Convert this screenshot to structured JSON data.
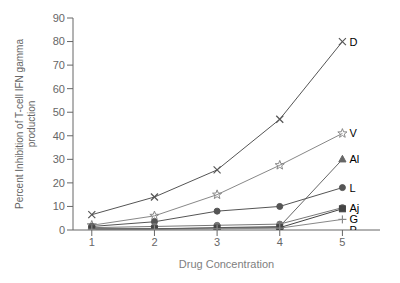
{
  "chart_data": {
    "type": "line",
    "x": [
      1,
      2,
      3,
      4,
      5
    ],
    "series": [
      {
        "name": "D",
        "color": "#555555",
        "marker": "x",
        "values": [
          6.5,
          14.0,
          25.5,
          47.0,
          80.0
        ]
      },
      {
        "name": "V",
        "color": "#888888",
        "marker": "star",
        "values": [
          2.0,
          6.0,
          15.0,
          27.5,
          41.0
        ]
      },
      {
        "name": "Al",
        "color": "#666666",
        "marker": "triangle",
        "values": [
          0.3,
          0.5,
          1.0,
          1.5,
          30.0
        ]
      },
      {
        "name": "L",
        "color": "#555555",
        "marker": "circle",
        "values": [
          1.5,
          3.5,
          8.0,
          10.0,
          18.0
        ]
      },
      {
        "name": "Aj",
        "color": "#777777",
        "marker": "circle",
        "values": [
          1.0,
          1.5,
          2.0,
          2.5,
          9.5
        ]
      },
      {
        "name": "G",
        "color": "#444444",
        "marker": "square",
        "values": [
          0.5,
          0.5,
          0.8,
          1.0,
          9.0
        ]
      },
      {
        "name": "P",
        "color": "#888888",
        "marker": "plus",
        "values": [
          0.3,
          0.3,
          0.5,
          0.8,
          4.5
        ]
      }
    ],
    "xlabel": "Drug Concentration",
    "ylabel": "Percent Inhibition of T-cell IFN gamma\nproduction",
    "xlim": [
      0.7,
      5.6
    ],
    "ylim": [
      0,
      90
    ],
    "xticks": [
      1,
      2,
      3,
      4,
      5
    ],
    "yticks": [
      0,
      10,
      20,
      30,
      40,
      50,
      60,
      70,
      80,
      90
    ],
    "grid": false
  }
}
